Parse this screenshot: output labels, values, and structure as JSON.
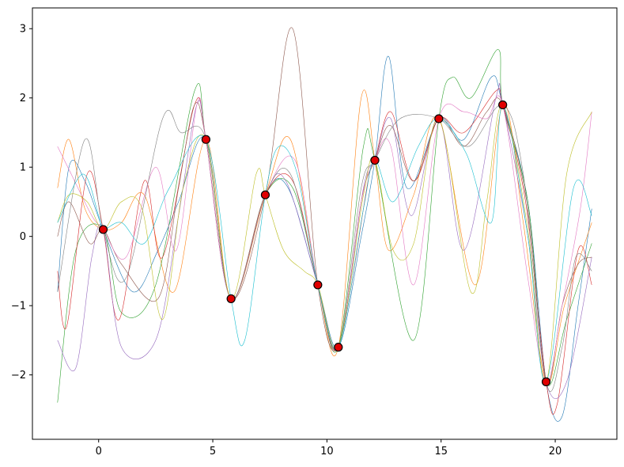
{
  "chart_data": {
    "type": "line",
    "title": "",
    "xlabel": "",
    "ylabel": "",
    "xlim": [
      -2.9,
      22.7
    ],
    "ylim": [
      -2.93,
      3.3
    ],
    "xticks": [
      0,
      5,
      10,
      15,
      20
    ],
    "yticks": [
      -2,
      -1,
      0,
      1,
      2,
      3
    ],
    "xtick_labels": [
      "0",
      "5",
      "10",
      "15",
      "20"
    ],
    "ytick_labels": [
      "−2",
      "−1",
      "0",
      "1",
      "2",
      "3"
    ],
    "grid": false,
    "legend": "none",
    "observations": {
      "color": "#e00000",
      "x": [
        0.2,
        4.7,
        5.8,
        7.3,
        9.6,
        10.5,
        12.1,
        14.9,
        17.7,
        19.6
      ],
      "y": [
        0.1,
        1.4,
        -0.9,
        0.6,
        -0.7,
        -1.6,
        1.1,
        1.7,
        1.9,
        -2.1
      ]
    },
    "series": [
      {
        "color": "#1f77b4",
        "x": [
          -1.8,
          -1.3,
          -0.6,
          0.2,
          1.5,
          2.6,
          3.5,
          4.7,
          5.8,
          7.3,
          8.3,
          9.6,
          10.5,
          11.5,
          12.1,
          12.7,
          13.5,
          14.9,
          16.0,
          17.2,
          17.7,
          18.8,
          19.6,
          20.3,
          21.0,
          21.6
        ],
        "y": [
          -0.8,
          1.0,
          0.8,
          0.1,
          -0.8,
          -0.2,
          0.5,
          1.4,
          -0.9,
          0.6,
          0.7,
          -0.7,
          -1.6,
          0.0,
          1.1,
          2.6,
          0.7,
          1.7,
          1.4,
          2.3,
          1.9,
          0.5,
          -2.1,
          -2.6,
          -1.0,
          0.4
        ]
      },
      {
        "color": "#ff7f0e",
        "x": [
          -1.8,
          -1.3,
          -0.6,
          0.2,
          1.0,
          2.0,
          3.3,
          4.7,
          5.8,
          7.3,
          8.4,
          9.6,
          10.5,
          11.5,
          12.1,
          12.7,
          13.8,
          14.9,
          16.5,
          17.7,
          18.6,
          19.6,
          20.4,
          21.6
        ],
        "y": [
          0.7,
          1.4,
          0.4,
          0.1,
          0.2,
          0.6,
          -0.8,
          1.4,
          -0.9,
          0.6,
          1.4,
          -0.7,
          -1.6,
          2.0,
          1.1,
          -0.2,
          0.6,
          1.7,
          -0.7,
          1.9,
          0.2,
          -2.1,
          -1.0,
          0.2
        ]
      },
      {
        "color": "#2ca02c",
        "x": [
          -1.8,
          -1.0,
          0.2,
          1.0,
          2.5,
          4.2,
          4.7,
          5.8,
          7.3,
          8.5,
          9.6,
          10.5,
          11.6,
          12.1,
          13.8,
          14.9,
          15.5,
          16.3,
          17.5,
          17.7,
          18.8,
          19.6,
          20.5,
          21.6
        ],
        "y": [
          -2.4,
          -0.2,
          0.1,
          -1.1,
          -0.7,
          2.1,
          1.4,
          -0.9,
          0.6,
          0.7,
          -0.7,
          -1.6,
          1.3,
          1.1,
          -1.5,
          1.7,
          2.3,
          2.0,
          2.7,
          1.9,
          0.5,
          -2.1,
          -1.2,
          -0.1
        ]
      },
      {
        "color": "#d62728",
        "x": [
          -1.8,
          -1.4,
          -0.5,
          0.2,
          0.9,
          2.0,
          2.8,
          4.2,
          4.7,
          5.8,
          7.3,
          8.5,
          9.6,
          10.5,
          11.8,
          12.1,
          12.8,
          13.8,
          14.9,
          16.0,
          17.4,
          17.7,
          18.7,
          19.6,
          20.1,
          21.0,
          21.6
        ],
        "y": [
          -0.5,
          -1.3,
          0.9,
          0.1,
          -1.2,
          0.8,
          -0.3,
          1.9,
          1.4,
          -0.9,
          0.6,
          0.8,
          -0.7,
          -1.6,
          0.8,
          1.1,
          1.8,
          0.8,
          1.7,
          1.5,
          2.1,
          1.9,
          0.5,
          -2.1,
          -2.4,
          -0.2,
          -0.7
        ]
      },
      {
        "color": "#9467bd",
        "x": [
          -1.8,
          -1.0,
          -0.3,
          0.2,
          1.0,
          2.5,
          3.5,
          4.3,
          4.7,
          5.8,
          7.3,
          8.2,
          9.6,
          10.5,
          11.6,
          12.1,
          12.8,
          13.7,
          14.9,
          16.0,
          17.4,
          17.7,
          18.8,
          19.6,
          20.5,
          21.6
        ],
        "y": [
          -1.5,
          -1.9,
          -0.3,
          0.1,
          -1.6,
          -1.5,
          0.3,
          1.9,
          1.4,
          -0.9,
          0.6,
          0.8,
          -0.7,
          -1.6,
          0.7,
          1.1,
          1.7,
          0.3,
          1.7,
          -0.2,
          2.0,
          1.9,
          0.0,
          -2.1,
          -2.1,
          -0.3
        ]
      },
      {
        "color": "#8c564b",
        "x": [
          -1.8,
          -1.3,
          -0.4,
          0.2,
          1.0,
          2.6,
          3.5,
          4.2,
          4.7,
          5.8,
          7.3,
          8.5,
          9.6,
          10.5,
          11.5,
          12.1,
          12.8,
          13.8,
          14.9,
          16.0,
          17.0,
          17.7,
          18.8,
          19.6,
          20.3,
          21.0,
          21.6
        ],
        "y": [
          0.0,
          0.5,
          -0.1,
          0.1,
          -0.4,
          -0.9,
          0.7,
          1.9,
          1.4,
          -0.9,
          0.6,
          3.0,
          -0.7,
          -1.6,
          0.5,
          1.1,
          1.6,
          0.8,
          1.7,
          1.3,
          1.8,
          1.9,
          0.4,
          -2.1,
          -1.0,
          -0.4,
          -0.3
        ]
      },
      {
        "color": "#e377c2",
        "x": [
          -1.8,
          -1.2,
          -0.3,
          0.2,
          1.2,
          2.5,
          3.4,
          4.3,
          4.7,
          5.8,
          7.3,
          8.6,
          9.6,
          10.5,
          11.5,
          12.1,
          12.8,
          13.8,
          14.9,
          16.0,
          17.0,
          17.7,
          18.8,
          19.6,
          20.3,
          21.1,
          21.6
        ],
        "y": [
          1.3,
          0.9,
          0.3,
          0.1,
          -0.3,
          1.0,
          -0.2,
          1.9,
          1.4,
          -0.9,
          0.6,
          1.1,
          -0.7,
          -1.6,
          0.5,
          1.1,
          1.3,
          -0.7,
          1.7,
          1.8,
          1.7,
          1.9,
          -0.6,
          -2.1,
          -1.0,
          0.4,
          1.8
        ]
      },
      {
        "color": "#7f7f7f",
        "x": [
          -1.8,
          -0.6,
          0.2,
          1.2,
          2.8,
          3.6,
          4.7,
          5.8,
          7.3,
          8.4,
          9.6,
          10.5,
          11.5,
          12.1,
          13.2,
          14.9,
          16.2,
          17.7,
          18.6,
          19.6,
          20.3,
          20.9,
          21.6
        ],
        "y": [
          -0.8,
          1.4,
          0.1,
          -0.6,
          1.7,
          1.5,
          1.4,
          -0.9,
          0.6,
          0.9,
          -0.7,
          -1.6,
          0.7,
          1.1,
          1.7,
          1.7,
          1.3,
          1.9,
          0.9,
          -2.1,
          -1.6,
          -0.3,
          -0.5
        ]
      },
      {
        "color": "#bcbd22",
        "x": [
          -1.8,
          -1.3,
          -0.5,
          0.2,
          1.0,
          1.9,
          2.8,
          3.7,
          4.7,
          5.8,
          6.9,
          7.3,
          8.1,
          9.0,
          9.6,
          10.5,
          11.6,
          12.1,
          12.9,
          13.8,
          14.9,
          16.3,
          17.0,
          17.7,
          18.8,
          19.6,
          20.5,
          21.6
        ],
        "y": [
          0.2,
          0.6,
          0.5,
          0.1,
          0.5,
          0.4,
          -1.2,
          0.7,
          1.4,
          -0.9,
          0.9,
          0.6,
          -0.2,
          -0.5,
          -0.7,
          -1.6,
          0.6,
          1.1,
          -0.2,
          -0.1,
          1.7,
          -0.8,
          0.5,
          1.9,
          0.1,
          -2.1,
          0.9,
          1.8
        ]
      },
      {
        "color": "#17becf",
        "x": [
          -1.8,
          -0.7,
          0.0,
          0.2,
          1.0,
          2.0,
          3.1,
          4.7,
          5.8,
          6.4,
          7.3,
          7.9,
          8.7,
          9.6,
          10.5,
          11.6,
          12.1,
          12.9,
          14.0,
          14.9,
          16.1,
          17.2,
          17.7,
          18.8,
          19.6,
          20.8,
          21.6
        ],
        "y": [
          0.2,
          0.9,
          0.3,
          0.1,
          0.2,
          -0.1,
          0.7,
          1.4,
          -0.9,
          -1.5,
          0.6,
          1.3,
          0.9,
          -0.7,
          -1.6,
          0.4,
          1.1,
          0.5,
          1.3,
          1.7,
          1.2,
          0.2,
          1.9,
          0.0,
          -2.1,
          0.7,
          0.3
        ]
      }
    ]
  }
}
